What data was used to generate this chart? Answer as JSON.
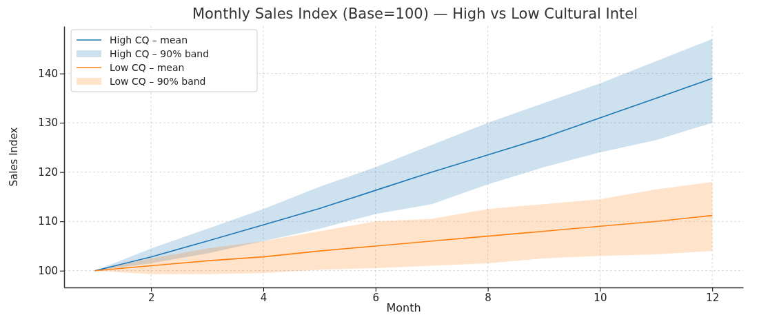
{
  "chart_data": {
    "type": "line",
    "title": "Monthly Sales Index (Base=100) — High vs Low Cultural Intel",
    "xlabel": "Month",
    "ylabel": "Sales Index",
    "annotations": [
      "High CQ – 90% band",
      "Low CQ – 90% band"
    ],
    "x": [
      1,
      2,
      3,
      4,
      5,
      6,
      7,
      8,
      9,
      10,
      11,
      12
    ],
    "xlim": [
      0.45,
      12.55
    ],
    "xticks": [
      2,
      4,
      6,
      8,
      10,
      12
    ],
    "ylim": [
      96.6,
      149.6
    ],
    "yticks": [
      100,
      110,
      120,
      130,
      140
    ],
    "grid": true,
    "legend": "top left",
    "line_style": "solid",
    "marker": "none",
    "series": [
      {
        "name": "High CQ – mean",
        "color": "#1f77b4",
        "values": [
          100,
          102.8,
          106,
          109.3,
          112.6,
          116.3,
          120,
          123.5,
          127,
          131,
          135,
          139
        ],
        "lower": [
          100,
          101.5,
          103.5,
          106,
          108.5,
          111.5,
          113.5,
          117.5,
          121,
          124,
          126.5,
          130
        ],
        "upper": [
          100,
          104.5,
          108.5,
          112.5,
          117,
          121,
          125.5,
          130,
          134,
          138,
          142.5,
          147
        ]
      },
      {
        "name": "Low CQ – mean",
        "color": "#ff7f0e",
        "values": [
          100,
          101,
          102,
          102.8,
          104,
          105,
          106,
          107,
          108,
          109,
          110,
          111.2
        ],
        "lower": [
          100,
          99.3,
          99.3,
          99.5,
          100.2,
          100.5,
          101,
          101.5,
          102.5,
          103,
          103.3,
          104
        ],
        "upper": [
          100,
          102.5,
          104.5,
          106,
          108,
          110,
          110.5,
          112.5,
          113.5,
          114.5,
          116.5,
          118
        ]
      }
    ]
  }
}
